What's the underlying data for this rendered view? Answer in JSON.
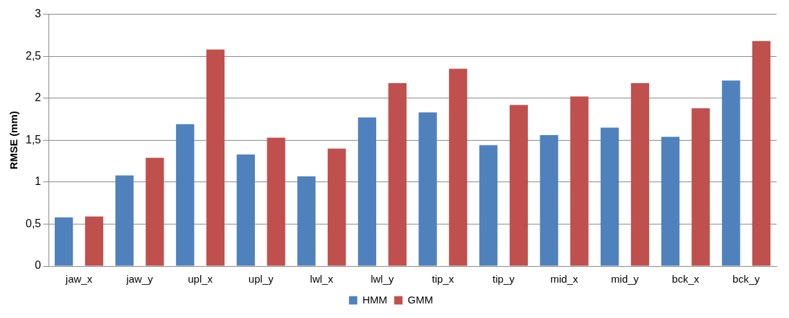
{
  "chart_data": {
    "type": "bar",
    "ylabel": "RMSE (mm)",
    "categories": [
      "jaw_x",
      "jaw_y",
      "upl_x",
      "upl_y",
      "lwl_x",
      "lwl_y",
      "tip_x",
      "tip_y",
      "mid_x",
      "mid_y",
      "bck_x",
      "bck_y"
    ],
    "series": [
      {
        "name": "HMM",
        "color": "#4f81bd",
        "values": [
          0.58,
          1.08,
          1.69,
          1.33,
          1.07,
          1.77,
          1.83,
          1.44,
          1.56,
          1.65,
          1.54,
          2.21
        ]
      },
      {
        "name": "GMM",
        "color": "#c0504d",
        "values": [
          0.59,
          1.29,
          2.58,
          1.53,
          1.4,
          2.18,
          2.35,
          1.92,
          2.02,
          2.18,
          1.88,
          2.68
        ]
      }
    ],
    "ylim": [
      0,
      3
    ],
    "yticks": [
      0,
      {
        "value": 0.5,
        "label": "0,5"
      },
      1,
      {
        "value": 1.5,
        "label": "1,5"
      },
      2,
      {
        "value": 2.5,
        "label": "2,5"
      },
      3
    ],
    "grid": "y",
    "legend": "bottom"
  }
}
